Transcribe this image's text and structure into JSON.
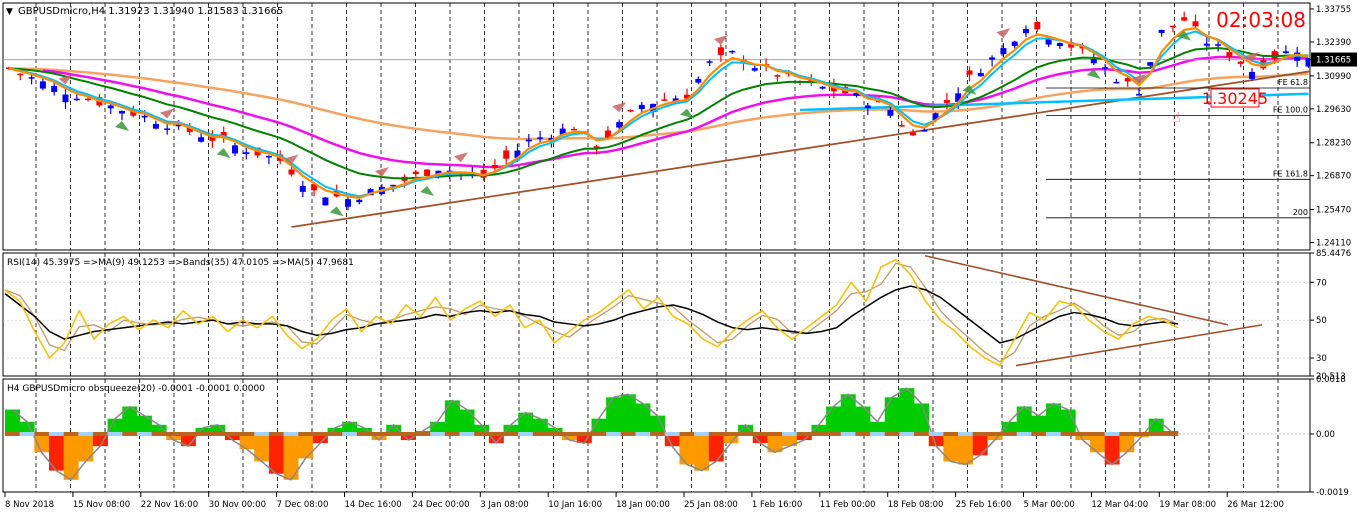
{
  "window": {
    "title": "GBPUSDmicro,H4  1.31923 1.31940 1.31583 1.31665",
    "timer": "02:03:08"
  },
  "colors": {
    "bull": "#0000ff",
    "bear": "#ff0000",
    "grid": "#000000",
    "ma_fast": "#ff8c00",
    "ma_mid": "#00bfff",
    "ma_slow": "#008000",
    "ma_magenta": "#ee10ee",
    "ma_long": "#f4a460",
    "trend": "#a0522d",
    "rsi": "#f4c20d",
    "rsi_ma": "#000000",
    "rsi_band": "#c19a6b",
    "hist_pos": "#00cc00",
    "hist_neg": "#ff2200",
    "hist_neg2": "#ff9900"
  },
  "chart_data": [
    {
      "type": "candlestick",
      "panel": "price",
      "title": "GBPUSDmicro,H4  1.31923 1.31940 1.31583 1.31665",
      "y_ticks": [
        "1.33755",
        "1.32390",
        "1.31665",
        "1.30990",
        "1.29630",
        "1.28230",
        "1.26870",
        "1.25470",
        "1.24110"
      ],
      "current_price": "1.31665",
      "ylim": [
        1.238,
        1.34
      ],
      "approx_close_path": [
        [
          0,
          1.313
        ],
        [
          4,
          1.305
        ],
        [
          8,
          1.299
        ],
        [
          12,
          1.293
        ],
        [
          16,
          1.287
        ],
        [
          20,
          1.281
        ],
        [
          24,
          1.275
        ],
        [
          27,
          1.262
        ],
        [
          30,
          1.259
        ],
        [
          34,
          1.265
        ],
        [
          38,
          1.272
        ],
        [
          42,
          1.268
        ],
        [
          46,
          1.283
        ],
        [
          50,
          1.289
        ],
        [
          52,
          1.281
        ],
        [
          56,
          1.298
        ],
        [
          60,
          1.302
        ],
        [
          62,
          1.315
        ],
        [
          64,
          1.319
        ],
        [
          66,
          1.314
        ],
        [
          70,
          1.307
        ],
        [
          74,
          1.303
        ],
        [
          78,
          1.296
        ],
        [
          80,
          1.285
        ],
        [
          82,
          1.294
        ],
        [
          85,
          1.309
        ],
        [
          88,
          1.321
        ],
        [
          90,
          1.331
        ],
        [
          93,
          1.325
        ],
        [
          96,
          1.317
        ],
        [
          98,
          1.309
        ],
        [
          100,
          1.304
        ],
        [
          102,
          1.328
        ],
        [
          104,
          1.333
        ],
        [
          106,
          1.324
        ],
        [
          108,
          1.319
        ],
        [
          110,
          1.312
        ],
        [
          112,
          1.318
        ],
        [
          114,
          1.321
        ],
        [
          115,
          1.3166
        ]
      ],
      "fibonacci_levels": [
        {
          "label": "FE 61.8",
          "value": 1.3049
        },
        {
          "label": "FE 100.0",
          "value": 1.2935
        },
        {
          "label": "FE 161.8",
          "value": 1.2672
        },
        {
          "label": "200",
          "value": 1.2513
        }
      ],
      "price_label": "1.30245",
      "x_ticks": [
        "8 Nov 2018",
        "15 Nov 08:00",
        "22 Nov 16:00",
        "30 Nov 00:00",
        "7 Dec 08:00",
        "14 Dec 16:00",
        "24 Dec 00:00",
        "3 Jan 08:00",
        "10 Jan 16:00",
        "18 Jan 00:00",
        "25 Jan 08:00",
        "1 Feb 16:00",
        "11 Feb 00:00",
        "18 Feb 08:00",
        "25 Feb 16:00",
        "5 Mar 00:00",
        "12 Mar 04:00",
        "19 Mar 08:00",
        "26 Mar 12:00"
      ]
    },
    {
      "type": "line",
      "panel": "rsi",
      "title": "RSI(14) 45.3975  =>MA(9) 49.1253  =>Bands(35) 47.0105  =>MA(5) 47.9681",
      "y_ticks": [
        "85.4476",
        "70",
        "50",
        "30",
        "20.513"
      ],
      "ylim": [
        20.513,
        85.4476
      ],
      "series": [
        {
          "values": [
            66,
            60,
            44,
            30,
            38,
            55,
            40,
            48,
            52,
            45,
            50,
            46,
            55,
            48,
            52,
            44,
            50,
            46,
            52,
            42,
            35,
            40,
            50,
            56,
            44,
            52,
            48,
            58,
            52,
            62,
            50,
            56,
            60,
            52,
            58,
            46,
            50,
            38,
            44,
            50,
            54,
            60,
            66,
            56,
            62,
            52,
            48,
            40,
            36,
            44,
            50,
            55,
            46,
            40,
            46,
            52,
            58,
            70,
            60,
            78,
            82,
            74,
            60,
            50,
            44,
            36,
            30,
            26,
            40,
            54,
            50,
            60,
            58,
            50,
            44,
            40,
            48,
            52,
            50,
            46
          ]
        },
        {
          "values": [
            64,
            58,
            52,
            44,
            40,
            42,
            44,
            45,
            46,
            47,
            48,
            49,
            48,
            49,
            50,
            48,
            49,
            48,
            48,
            47,
            44,
            42,
            43,
            45,
            46,
            48,
            49,
            50,
            51,
            53,
            52,
            54,
            55,
            54,
            55,
            53,
            52,
            49,
            48,
            47,
            48,
            50,
            53,
            55,
            57,
            58,
            56,
            53,
            49,
            46,
            45,
            46,
            45,
            44,
            43,
            44,
            46,
            52,
            57,
            62,
            66,
            68,
            66,
            62,
            56,
            50,
            44,
            38,
            40,
            44,
            48,
            52,
            54,
            53,
            51,
            48,
            47,
            48,
            49,
            48
          ]
        }
      ]
    },
    {
      "type": "bar",
      "panel": "histogram",
      "title": "H4 GBPUSDmicro obsqueeze(20) -0.0001 -0.0001 0.0000",
      "y_ticks": [
        "0.0018",
        "0.00",
        "-0.0019"
      ],
      "ylim": [
        -0.0019,
        0.0018
      ],
      "values": [
        0.0008,
        0.0004,
        -0.0006,
        -0.0012,
        -0.0015,
        -0.0009,
        -0.0004,
        0.0005,
        0.0009,
        0.0006,
        0.0003,
        -0.0002,
        -0.0004,
        0.0002,
        0.0003,
        -0.0002,
        -0.0005,
        -0.0009,
        -0.0013,
        -0.0015,
        -0.0008,
        -0.0003,
        0.0002,
        0.0004,
        0.0002,
        -0.0002,
        0.0003,
        -0.0002,
        0.0001,
        0.0004,
        0.0011,
        0.0008,
        0.0003,
        -0.0003,
        0.0003,
        0.0007,
        0.0005,
        0.0002,
        -0.0002,
        -0.0003,
        0.0005,
        0.0012,
        0.0013,
        0.001,
        0.0006,
        -0.0004,
        -0.001,
        -0.0012,
        -0.0009,
        -0.0003,
        0.0003,
        -0.0003,
        -0.0006,
        -0.0004,
        -0.0002,
        0.0003,
        0.0009,
        0.0013,
        0.0009,
        0.0004,
        0.0012,
        0.0015,
        0.001,
        -0.0004,
        -0.0009,
        -0.001,
        -0.0007,
        -0.0002,
        0.0004,
        0.0009,
        0.0006,
        0.001,
        0.0008,
        -0.0002,
        -0.0006,
        -0.001,
        -0.0006,
        -0.0001,
        0.0005,
        0.0001
      ]
    }
  ]
}
